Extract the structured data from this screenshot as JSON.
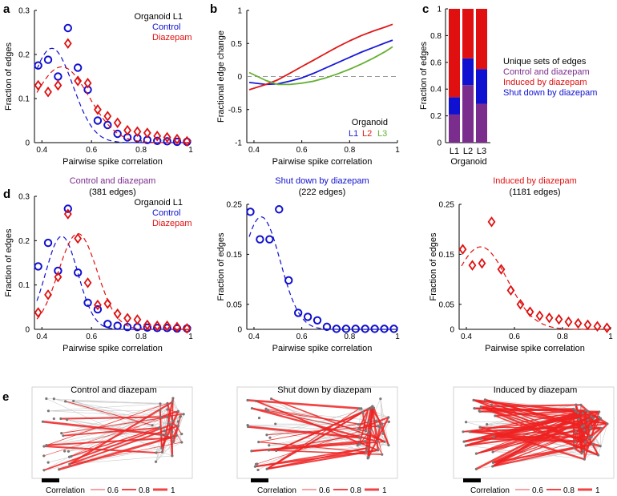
{
  "colors": {
    "control": "#1010d0",
    "diazepam": "#e01010",
    "l1": "#1a1ad8",
    "l2": "#e01818",
    "l3": "#66b032",
    "shared": "#7b2d8e",
    "axis": "#000000",
    "guide": "#999999",
    "map_edge": "#cccccc",
    "map_red": "#ee2222",
    "node": "#777777"
  },
  "chart_data": [
    {
      "id": "a",
      "type": "scatter",
      "panel_label": "a",
      "xlabel": "Pairwise spike correlation",
      "ylabel": "Fraction of edges",
      "xlim": [
        0.37,
        1.0
      ],
      "ylim": [
        0,
        0.3
      ],
      "xticks": [
        0.4,
        0.6,
        0.8,
        1
      ],
      "xtick_labels": [
        "0.4",
        "0.6",
        "0.8",
        "1"
      ],
      "yticks": [
        0,
        0.1,
        0.2,
        0.3
      ],
      "ytick_labels": [
        "0",
        "0.1",
        "0.2",
        "0.3"
      ],
      "legend": {
        "title": "Organoid L1",
        "entries": [
          "Control",
          "Diazepam"
        ],
        "position": "top-right"
      },
      "x": [
        0.385,
        0.425,
        0.465,
        0.505,
        0.545,
        0.585,
        0.625,
        0.665,
        0.705,
        0.745,
        0.785,
        0.825,
        0.865,
        0.905,
        0.945,
        0.985
      ],
      "series": [
        {
          "name": "Control",
          "marker": "circle",
          "values": [
            0.175,
            0.188,
            0.15,
            0.26,
            0.17,
            0.12,
            0.05,
            0.04,
            0.02,
            0.012,
            0.01,
            0.006,
            0.004,
            0.003,
            0.002,
            0.002
          ],
          "fit": {
            "mu": 0.44,
            "sigma": 0.085,
            "peak": 0.214
          }
        },
        {
          "name": "Diazepam",
          "marker": "diamond",
          "values": [
            0.13,
            0.115,
            0.13,
            0.225,
            0.14,
            0.135,
            0.075,
            0.06,
            0.045,
            0.028,
            0.025,
            0.022,
            0.015,
            0.012,
            0.008,
            0.003
          ],
          "fit": {
            "mu": 0.48,
            "sigma": 0.11,
            "peak": 0.172
          }
        }
      ]
    },
    {
      "id": "b",
      "type": "line",
      "panel_label": "b",
      "xlabel": "Pairwise spike correlation",
      "ylabel": "Fractional edge change",
      "xlim": [
        0.37,
        1.0
      ],
      "ylim": [
        -1,
        1
      ],
      "xticks": [
        0.4,
        0.6,
        0.8,
        1
      ],
      "xtick_labels": [
        "0.4",
        "0.6",
        "0.8",
        "1"
      ],
      "yticks": [
        -1,
        -0.5,
        0,
        0.5,
        1
      ],
      "ytick_labels": [
        "-1",
        "-0.5",
        "0",
        "0.5",
        "1"
      ],
      "zero_line": 0,
      "legend": {
        "title": "Organoid",
        "entries": [
          "L1",
          "L2",
          "L3"
        ],
        "position": "bottom-right"
      },
      "x": [
        0.38,
        0.45,
        0.5,
        0.55,
        0.6,
        0.65,
        0.7,
        0.75,
        0.8,
        0.85,
        0.9,
        0.95,
        0.98
      ],
      "series": [
        {
          "name": "L1",
          "values": [
            -0.09,
            -0.12,
            -0.11,
            -0.07,
            -0.02,
            0.05,
            0.13,
            0.21,
            0.29,
            0.37,
            0.44,
            0.51,
            0.55
          ]
        },
        {
          "name": "L2",
          "values": [
            -0.2,
            -0.12,
            -0.05,
            0.05,
            0.15,
            0.25,
            0.35,
            0.45,
            0.54,
            0.62,
            0.69,
            0.75,
            0.79
          ]
        },
        {
          "name": "L3",
          "values": [
            0.06,
            -0.06,
            -0.12,
            -0.12,
            -0.1,
            -0.07,
            -0.02,
            0.04,
            0.11,
            0.19,
            0.28,
            0.38,
            0.45
          ]
        }
      ]
    },
    {
      "id": "c",
      "type": "bar",
      "panel_label": "c",
      "stacked": true,
      "ylabel": "Fraction of edges",
      "xlabel": "Organoid",
      "ylim": [
        0,
        1
      ],
      "yticks": [
        0,
        0.2,
        0.4,
        0.6,
        0.8,
        1
      ],
      "ytick_labels": [
        "0",
        "0.2",
        "0.4",
        "0.6",
        "0.8",
        "1"
      ],
      "categories": [
        "L1",
        "L2",
        "L3"
      ],
      "legend": {
        "title": "Unique sets of edges",
        "entries": [
          "Control and diazepam",
          "Induced by diazepam",
          "Shut down by diazepam"
        ],
        "position": "right"
      },
      "series": [
        {
          "name": "Control and diazepam",
          "values": [
            0.21,
            0.43,
            0.29
          ]
        },
        {
          "name": "Shut down by diazepam",
          "values": [
            0.13,
            0.2,
            0.26
          ]
        },
        {
          "name": "Induced by diazepam",
          "values": [
            0.66,
            0.37,
            0.45
          ]
        }
      ]
    },
    {
      "id": "d1",
      "type": "scatter",
      "panel_label": "d",
      "title": "Control and diazepam",
      "subtitle": "(381 edges)",
      "xlabel": "Pairwise spike correlation",
      "ylabel": "Fraction of edges",
      "xlim": [
        0.37,
        1.0
      ],
      "ylim": [
        0,
        0.3
      ],
      "xticks": [
        0.4,
        0.6,
        0.8,
        1
      ],
      "xtick_labels": [
        "0.4",
        "0.6",
        "0.8",
        "1"
      ],
      "yticks": [
        0,
        0.1,
        0.2,
        0.3
      ],
      "ytick_labels": [
        "0",
        "0.1",
        "0.2",
        "0.3"
      ],
      "legend": {
        "title": "Organoid L1",
        "entries": [
          "Control",
          "Diazepam"
        ],
        "position": "top-right"
      },
      "x": [
        0.385,
        0.425,
        0.465,
        0.505,
        0.545,
        0.585,
        0.625,
        0.665,
        0.705,
        0.745,
        0.785,
        0.825,
        0.865,
        0.905,
        0.945,
        0.985
      ],
      "series": [
        {
          "name": "Control",
          "marker": "circle",
          "values": [
            0.142,
            0.195,
            0.132,
            0.272,
            0.128,
            0.06,
            0.045,
            0.012,
            0.008,
            0.005,
            0.005,
            0.004,
            0.003,
            0.003,
            0.002,
            0.002
          ],
          "fit": {
            "mu": 0.48,
            "sigma": 0.065,
            "peak": 0.21
          }
        },
        {
          "name": "Diazepam",
          "marker": "diamond",
          "values": [
            0.038,
            0.078,
            0.118,
            0.26,
            0.205,
            0.105,
            0.055,
            0.058,
            0.035,
            0.025,
            0.022,
            0.01,
            0.008,
            0.008,
            0.005,
            0.002
          ],
          "fit": {
            "mu": 0.545,
            "sigma": 0.078,
            "peak": 0.216
          }
        }
      ]
    },
    {
      "id": "d2",
      "type": "scatter",
      "title": "Shut down by diazepam",
      "subtitle": "(222 edges)",
      "xlabel": "Pairwise spike correlation",
      "ylabel": "Fraction of edges",
      "xlim": [
        0.37,
        1.0
      ],
      "ylim": [
        0,
        0.25
      ],
      "xticks": [
        0.4,
        0.6,
        0.8,
        1
      ],
      "xtick_labels": [
        "0.4",
        "0.6",
        "0.8",
        "1"
      ],
      "yticks": [
        0,
        0.05,
        0.15,
        0.25
      ],
      "ytick_labels": [
        "0",
        "0.05",
        "0.15",
        "0.25"
      ],
      "x": [
        0.385,
        0.425,
        0.465,
        0.505,
        0.545,
        0.585,
        0.625,
        0.665,
        0.705,
        0.745,
        0.785,
        0.825,
        0.865,
        0.905,
        0.945,
        0.985
      ],
      "series": [
        {
          "name": "Shut down by diazepam",
          "marker": "circle",
          "values": [
            0.235,
            0.18,
            0.18,
            0.24,
            0.098,
            0.033,
            0.025,
            0.018,
            0.005,
            0.001,
            0.001,
            0.001,
            0.001,
            0.001,
            0.001,
            0.001
          ],
          "fit": {
            "mu": 0.43,
            "sigma": 0.08,
            "peak": 0.225
          }
        }
      ]
    },
    {
      "id": "d3",
      "type": "scatter",
      "title": "Induced by diazepam",
      "subtitle": "(1181 edges)",
      "xlabel": "Pairwise spike correlation",
      "ylabel": "Fraction of edges",
      "xlim": [
        0.37,
        1.0
      ],
      "ylim": [
        0,
        0.25
      ],
      "xticks": [
        0.4,
        0.6,
        0.8,
        1
      ],
      "xtick_labels": [
        "0.4",
        "0.6",
        "0.8",
        "1"
      ],
      "yticks": [
        0,
        0.05,
        0.15,
        0.25
      ],
      "ytick_labels": [
        "0",
        "0.05",
        "0.15",
        "0.25"
      ],
      "x": [
        0.385,
        0.425,
        0.465,
        0.505,
        0.545,
        0.585,
        0.625,
        0.665,
        0.705,
        0.745,
        0.785,
        0.825,
        0.865,
        0.905,
        0.945,
        0.985
      ],
      "series": [
        {
          "name": "Induced by diazepam",
          "marker": "diamond",
          "values": [
            0.16,
            0.128,
            0.132,
            0.215,
            0.12,
            0.078,
            0.05,
            0.035,
            0.027,
            0.023,
            0.02,
            0.015,
            0.012,
            0.009,
            0.006,
            0.003
          ],
          "fit": {
            "mu": 0.46,
            "sigma": 0.11,
            "peak": 0.165
          }
        }
      ]
    }
  ],
  "panel_e": {
    "label": "e",
    "maps": [
      {
        "title": "Control and diazepam",
        "red_edges": 38,
        "gray_edges": 90
      },
      {
        "title": "Shut down by diazepam",
        "red_edges": 50,
        "gray_edges": 90
      },
      {
        "title": "Induced by diazepam",
        "red_edges": 120,
        "gray_edges": 130
      }
    ],
    "legend": {
      "label": "Correlation",
      "values": [
        "0.6",
        "0.8",
        "1"
      ]
    }
  }
}
